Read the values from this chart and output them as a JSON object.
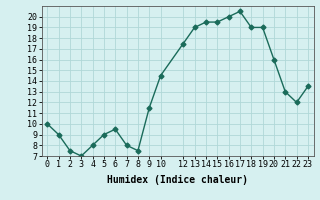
{
  "x": [
    0,
    1,
    2,
    3,
    4,
    5,
    6,
    7,
    8,
    9,
    10,
    12,
    13,
    14,
    15,
    16,
    17,
    18,
    19,
    20,
    21,
    22,
    23
  ],
  "y": [
    10,
    9,
    7.5,
    7,
    8,
    9,
    9.5,
    8,
    7.5,
    11.5,
    14.5,
    17.5,
    19,
    19.5,
    19.5,
    20,
    20.5,
    19,
    19,
    16,
    13,
    12,
    13.5
  ],
  "line_color": "#1a6b5a",
  "marker": "D",
  "marker_size": 2.5,
  "bg_color": "#d6f0f0",
  "xlabel": "Humidex (Indice chaleur)",
  "xlim": [
    -0.5,
    23.5
  ],
  "ylim": [
    7,
    21
  ],
  "yticks": [
    7,
    8,
    9,
    10,
    11,
    12,
    13,
    14,
    15,
    16,
    17,
    18,
    19,
    20
  ],
  "xtick_positions": [
    0,
    1,
    2,
    3,
    4,
    5,
    6,
    7,
    8,
    9,
    10,
    12,
    13,
    14,
    15,
    16,
    17,
    18,
    19,
    20,
    21,
    22,
    23
  ],
  "xtick_labels": [
    "0",
    "1",
    "2",
    "3",
    "4",
    "5",
    "6",
    "7",
    "8",
    "9",
    "10",
    "12",
    "13",
    "14",
    "15",
    "16",
    "17",
    "18",
    "19",
    "20",
    "21",
    "22",
    "23"
  ],
  "grid_color": "#b0d8d8",
  "tick_fontsize": 6,
  "label_fontsize": 7
}
